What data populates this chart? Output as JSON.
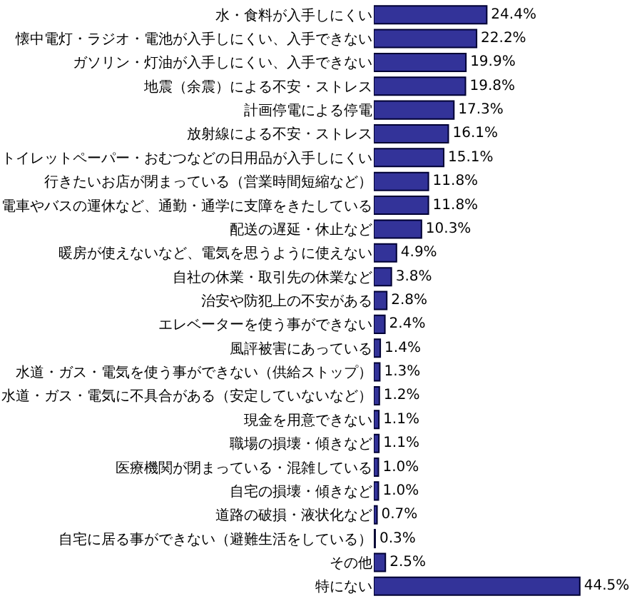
{
  "chart_data": {
    "type": "bar",
    "orientation": "horizontal",
    "tick_labels": "y",
    "color": "#333399",
    "categories": [
      "水・食料が入手しにくい",
      "懐中電灯・ラジオ・電池が入手しにくい、入手できない",
      "ガソリン・灯油が入手しにくい、入手できない",
      "地震（余震）による不安・ストレス",
      "計画停電による停電",
      "放射線による不安・ストレス",
      "トイレットペーパー・おむつなどの日用品が入手しにくい",
      "行きたいお店が閉まっている（営業時間短縮など）",
      "電車やバスの運休など、通勤・通学に支障をきたしている",
      "配送の遅延・休止など",
      "暖房が使えないなど、電気を思うように使えない",
      "自社の休業・取引先の休業など",
      "治安や防犯上の不安がある",
      "エレベーターを使う事ができない",
      "風評被害にあっている",
      "水道・ガス・電気を使う事ができない（供給ストップ）",
      "水道・ガス・電気に不具合がある（安定していないなど）",
      "現金を用意できない",
      "職場の損壊・傾きなど",
      "医療機関が閉まっている・混雑している",
      "自宅の損壊・傾きなど",
      "道路の破損・液状化など",
      "自宅に居る事ができない（避難生活をしている）",
      "その他",
      "特にない"
    ],
    "values": [
      24.4,
      22.2,
      19.9,
      19.8,
      17.3,
      16.1,
      15.1,
      11.8,
      11.8,
      10.3,
      4.9,
      3.8,
      2.8,
      2.4,
      1.4,
      1.3,
      1.2,
      1.1,
      1.1,
      1.0,
      1.0,
      0.7,
      0.3,
      2.5,
      44.5
    ],
    "value_labels": [
      "24.4%",
      "22.2%",
      "19.9%",
      "19.8%",
      "17.3%",
      "16.1%",
      "15.1%",
      "11.8%",
      "11.8%",
      "10.3%",
      "4.9%",
      "3.8%",
      "2.8%",
      "2.4%",
      "1.4%",
      "1.3%",
      "1.2%",
      "1.1%",
      "1.1%",
      "1.0%",
      "1.0%",
      "0.7%",
      "0.3%",
      "2.5%",
      "44.5%"
    ]
  }
}
